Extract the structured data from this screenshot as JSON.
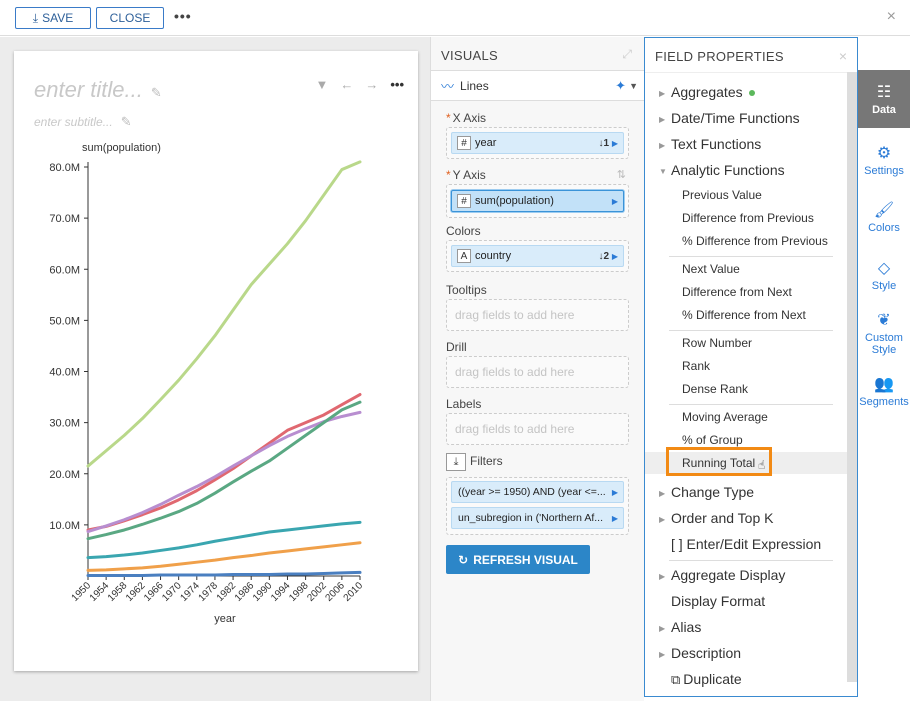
{
  "toolbar": {
    "save_label": "SAVE",
    "close_label": "CLOSE",
    "more_label": "•••",
    "close_icon": "×"
  },
  "canvas": {
    "title_placeholder": "enter title...",
    "subtitle_placeholder": "enter subtitle..."
  },
  "visuals": {
    "header": "VISUALS",
    "type_label": "Lines",
    "x_axis_label": "X Axis",
    "x_field": "year",
    "x_sort": "1",
    "y_axis_label": "Y Axis",
    "y_field": "sum(population)",
    "colors_label": "Colors",
    "colors_field": "country",
    "colors_sort": "2",
    "tooltips_label": "Tooltips",
    "drill_label": "Drill",
    "labels_label": "Labels",
    "drag_placeholder": "drag fields to add here",
    "filters_label": "Filters",
    "filter_1": "((year >= 1950) AND (year <=...",
    "filter_2": "un_subregion in ('Northern Af...",
    "refresh_label": "REFRESH VISUAL"
  },
  "field_properties": {
    "header": "FIELD PROPERTIES",
    "aggregates": "Aggregates",
    "datetime": "Date/Time Functions",
    "text_functions": "Text Functions",
    "analytic_functions": "Analytic Functions",
    "analytic_items_1": [
      "Previous Value",
      "Difference from Previous",
      "% Difference from Previous"
    ],
    "analytic_items_2": [
      "Next Value",
      "Difference from Next",
      "% Difference from Next"
    ],
    "analytic_items_3": [
      "Row Number",
      "Rank",
      "Dense Rank"
    ],
    "analytic_items_4": [
      "Moving Average",
      "% of Group"
    ],
    "running_total": "Running Total",
    "change_type": "Change Type",
    "order_top_k": "Order and Top K",
    "enter_edit": "[ ] Enter/Edit Expression",
    "aggregate_display": "Aggregate Display",
    "display_format": "Display Format",
    "alias": "Alias",
    "description": "Description",
    "duplicate": "Duplicate"
  },
  "rail": {
    "data": "Data",
    "settings": "Settings",
    "colors": "Colors",
    "style": "Style",
    "custom_style_1": "Custom",
    "custom_style_2": "Style",
    "segments": "Segments"
  },
  "chart_data": {
    "type": "line",
    "ylabel": "sum(population)",
    "xlabel": "year",
    "x": [
      1950,
      1954,
      1958,
      1962,
      1966,
      1970,
      1974,
      1978,
      1982,
      1986,
      1990,
      1994,
      1998,
      2002,
      2006,
      2010
    ],
    "ylim": [
      0,
      80
    ],
    "yticks": [
      "10.0M",
      "20.0M",
      "30.0M",
      "40.0M",
      "50.0M",
      "60.0M",
      "70.0M",
      "80.0M"
    ],
    "series": [
      {
        "color": "#b9d88a",
        "values": [
          21.5,
          24.5,
          27.5,
          30.8,
          34.5,
          38.3,
          42.5,
          47.0,
          52.0,
          57.0,
          61.0,
          65.0,
          69.5,
          74.5,
          79.5,
          81.0
        ]
      },
      {
        "color": "#e06870",
        "values": [
          9.0,
          9.7,
          10.8,
          12.0,
          13.3,
          14.9,
          16.7,
          18.8,
          21.0,
          23.5,
          26.0,
          28.5,
          30.0,
          31.5,
          33.5,
          35.5
        ]
      },
      {
        "color": "#b88ed0",
        "values": [
          8.7,
          9.8,
          11.0,
          12.4,
          14.0,
          15.8,
          17.5,
          19.4,
          21.5,
          23.5,
          25.5,
          27.3,
          28.8,
          30.2,
          31.2,
          32.0
        ]
      },
      {
        "color": "#5aa883",
        "values": [
          7.3,
          8.1,
          9.0,
          10.1,
          11.3,
          12.6,
          14.2,
          16.2,
          18.4,
          20.5,
          22.5,
          25.0,
          27.5,
          30.0,
          32.5,
          34.0
        ]
      },
      {
        "color": "#3aa6b0",
        "values": [
          3.6,
          3.8,
          4.1,
          4.5,
          5.0,
          5.5,
          6.1,
          6.8,
          7.4,
          8.0,
          8.6,
          9.0,
          9.4,
          9.8,
          10.2,
          10.5
        ]
      },
      {
        "color": "#f0a04a",
        "values": [
          1.1,
          1.2,
          1.4,
          1.6,
          1.9,
          2.3,
          2.7,
          3.1,
          3.6,
          4.0,
          4.5,
          4.9,
          5.3,
          5.7,
          6.1,
          6.5
        ]
      },
      {
        "color": "#4a7fc0",
        "values": [
          0.1,
          0.1,
          0.1,
          0.1,
          0.2,
          0.2,
          0.2,
          0.2,
          0.3,
          0.3,
          0.3,
          0.4,
          0.4,
          0.5,
          0.6,
          0.7
        ]
      }
    ]
  }
}
